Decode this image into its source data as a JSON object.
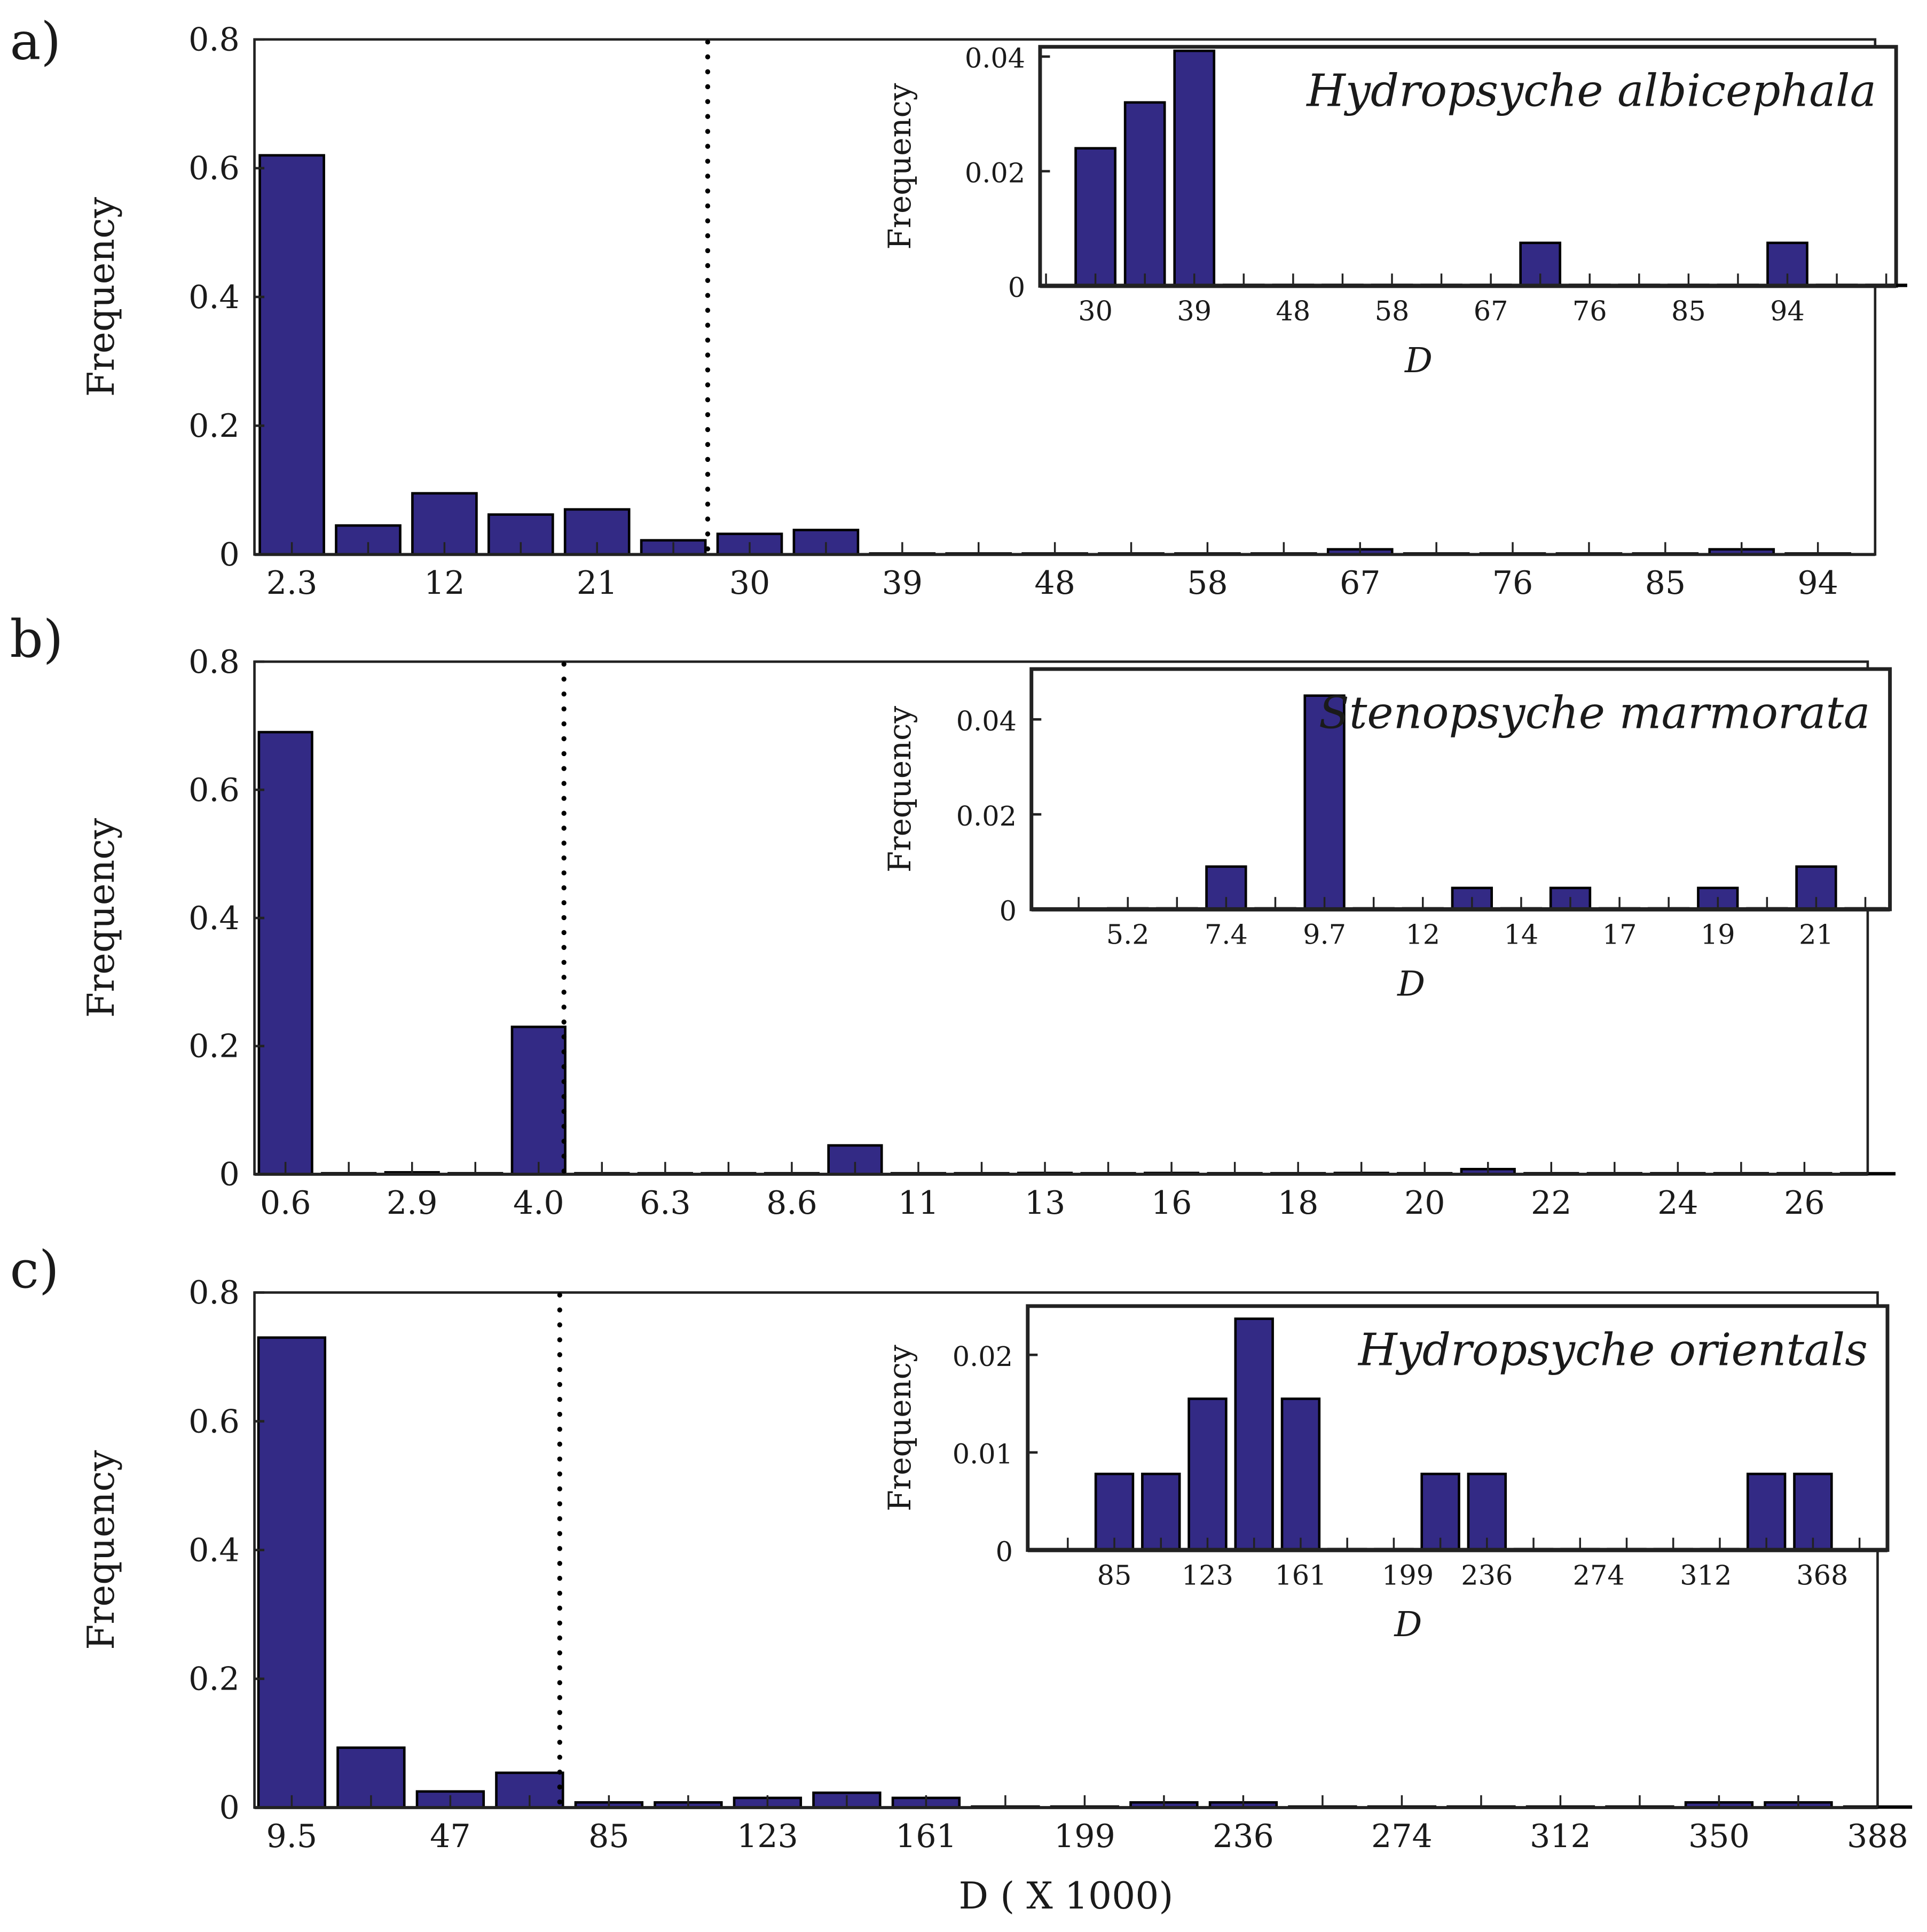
{
  "colors": {
    "bar": "#332a85",
    "edge": "#000000",
    "axis": "#222222"
  },
  "chart_data": [
    {
      "id": "a-main",
      "type": "bar",
      "panel_label": "a)",
      "ylabel": "Frequency",
      "xlabel": "",
      "ylim": [
        0,
        0.8
      ],
      "xlim_bins": [
        -0.49,
        20.75
      ],
      "yticks": [
        {
          "v": 0,
          "label": "0"
        },
        {
          "v": 0.2,
          "label": "0.2"
        },
        {
          "v": 0.4,
          "label": "0.4"
        },
        {
          "v": 0.6,
          "label": "0.6"
        },
        {
          "v": 0.8,
          "label": "0.8"
        }
      ],
      "xticks": [
        {
          "bin": 0,
          "label": "2.3"
        },
        {
          "bin": 2,
          "label": "12"
        },
        {
          "bin": 4,
          "label": "21"
        },
        {
          "bin": 6,
          "label": "30"
        },
        {
          "bin": 8,
          "label": "39"
        },
        {
          "bin": 10,
          "label": "48"
        },
        {
          "bin": 12,
          "label": "58"
        },
        {
          "bin": 14,
          "label": "67"
        },
        {
          "bin": 16,
          "label": "76"
        },
        {
          "bin": 18,
          "label": "85"
        },
        {
          "bin": 20,
          "label": "94"
        }
      ],
      "values": [
        0.62,
        0.045,
        0.095,
        0.062,
        0.07,
        0.022,
        0.032,
        0.038,
        0.001,
        0,
        0.001,
        0,
        0,
        0,
        0.008,
        0.001,
        0,
        0,
        0,
        0.008,
        0
      ],
      "threshold_bin": 5.45
    },
    {
      "id": "a-inset",
      "type": "bar",
      "species": "Hydropsyche albicephala",
      "ylabel": "Frequency",
      "xlabel": "D",
      "ylim": [
        0,
        0.0417
      ],
      "xlim_bins": [
        -1.12,
        16.2
      ],
      "yticks": [
        {
          "v": 0,
          "label": "0"
        },
        {
          "v": 0.02,
          "label": "0.02"
        },
        {
          "v": 0.04,
          "label": "0.04"
        }
      ],
      "xticks": [
        {
          "bin": 0,
          "label": "30"
        },
        {
          "bin": 2,
          "label": "39"
        },
        {
          "bin": 4,
          "label": "48"
        },
        {
          "bin": 6,
          "label": "58"
        },
        {
          "bin": 8,
          "label": "67"
        },
        {
          "bin": 10,
          "label": "76"
        },
        {
          "bin": 12,
          "label": "85"
        },
        {
          "bin": 14,
          "label": "94"
        }
      ],
      "values": [
        0.024,
        0.032,
        0.041,
        0,
        0,
        0,
        0,
        0,
        0,
        0.0075,
        0,
        0,
        0,
        0,
        0.0075,
        0,
        0
      ]
    },
    {
      "id": "b-main",
      "type": "bar",
      "panel_label": "b)",
      "ylabel": "Frequency",
      "xlabel": "",
      "ylim": [
        0,
        0.8
      ],
      "xlim_bins": [
        -0.49,
        25.0
      ],
      "yticks": [
        {
          "v": 0,
          "label": "0"
        },
        {
          "v": 0.2,
          "label": "0.2"
        },
        {
          "v": 0.4,
          "label": "0.4"
        },
        {
          "v": 0.6,
          "label": "0.6"
        },
        {
          "v": 0.8,
          "label": "0.8"
        }
      ],
      "xticks": [
        {
          "bin": 0,
          "label": "0.6"
        },
        {
          "bin": 2,
          "label": "2.9"
        },
        {
          "bin": 4,
          "label": "4.0"
        },
        {
          "bin": 6,
          "label": "6.3"
        },
        {
          "bin": 8,
          "label": "8.6"
        },
        {
          "bin": 10,
          "label": "11"
        },
        {
          "bin": 12,
          "label": "13"
        },
        {
          "bin": 14,
          "label": "16"
        },
        {
          "bin": 16,
          "label": "18"
        },
        {
          "bin": 18,
          "label": "20"
        },
        {
          "bin": 20,
          "label": "22"
        },
        {
          "bin": 22,
          "label": "24"
        },
        {
          "bin": 24,
          "label": "26"
        }
      ],
      "values": [
        0.69,
        0,
        0.003,
        0,
        0.23,
        0,
        0,
        0,
        0,
        0.045,
        0,
        0,
        0.002,
        0,
        0.002,
        0,
        0,
        0.002,
        0,
        0.008,
        0,
        0,
        0,
        0,
        0,
        0
      ],
      "threshold_bin": 4.4
    },
    {
      "id": "b-inset",
      "type": "bar",
      "species": "Stenopsyche marmorata",
      "ylabel": "Frequency",
      "xlabel": "D",
      "ylim": [
        0,
        0.0506
      ],
      "xlim_bins": [
        -1.96,
        15.5
      ],
      "yticks": [
        {
          "v": 0,
          "label": "0"
        },
        {
          "v": 0.02,
          "label": "0.02"
        },
        {
          "v": 0.04,
          "label": "0.04"
        }
      ],
      "xticks": [
        {
          "bin": 0,
          "label": "5.2"
        },
        {
          "bin": 2,
          "label": "7.4"
        },
        {
          "bin": 4,
          "label": "9.7"
        },
        {
          "bin": 6,
          "label": "12"
        },
        {
          "bin": 8,
          "label": "14"
        },
        {
          "bin": 10,
          "label": "17"
        },
        {
          "bin": 12,
          "label": "19"
        },
        {
          "bin": 14,
          "label": "21"
        }
      ],
      "values": [
        0,
        0,
        0.009,
        0,
        0.045,
        0,
        0,
        0.0045,
        0,
        0.0045,
        0,
        0,
        0.0045,
        0,
        0.009,
        0
      ]
    },
    {
      "id": "c-main",
      "type": "bar",
      "panel_label": "c)",
      "ylabel": "Frequency",
      "xlabel": "D ( X 1000)",
      "ylim": [
        0,
        0.8
      ],
      "xlim_bins": [
        -0.47,
        20.0
      ],
      "yticks": [
        {
          "v": 0,
          "label": "0"
        },
        {
          "v": 0.2,
          "label": "0.2"
        },
        {
          "v": 0.4,
          "label": "0.4"
        },
        {
          "v": 0.6,
          "label": "0.6"
        },
        {
          "v": 0.8,
          "label": "0.8"
        }
      ],
      "xticks": [
        {
          "bin": 0,
          "label": "9.5"
        },
        {
          "bin": 2,
          "label": "47"
        },
        {
          "bin": 4,
          "label": "85"
        },
        {
          "bin": 6,
          "label": "123"
        },
        {
          "bin": 8,
          "label": "161"
        },
        {
          "bin": 10,
          "label": "199"
        },
        {
          "bin": 12,
          "label": "236"
        },
        {
          "bin": 14,
          "label": "274"
        },
        {
          "bin": 16,
          "label": "312"
        },
        {
          "bin": 18,
          "label": "350"
        },
        {
          "bin": 20,
          "label": "388"
        }
      ],
      "values": [
        0.73,
        0.093,
        0.025,
        0.054,
        0.008,
        0.008,
        0.015,
        0.023,
        0.015,
        0.001,
        0.001,
        0.008,
        0.008,
        0,
        0,
        0,
        0,
        0,
        0.008,
        0.008,
        0
      ],
      "threshold_bin": 3.38
    },
    {
      "id": "c-inset",
      "type": "bar",
      "species": "Hydropsyche orientals",
      "ylabel": "Frequency",
      "xlabel": "D",
      "ylim": [
        0,
        0.025
      ],
      "xlim_bins": [
        -1.86,
        16.6
      ],
      "yticks": [
        {
          "v": 0,
          "label": "0"
        },
        {
          "v": 0.01,
          "label": "0.01"
        },
        {
          "v": 0.02,
          "label": "0.02"
        }
      ],
      "xticks": [
        {
          "bin": 0,
          "label": "85"
        },
        {
          "bin": 2,
          "label": "123"
        },
        {
          "bin": 4,
          "label": "161"
        },
        {
          "bin": 6.3,
          "label": "199"
        },
        {
          "bin": 8,
          "label": "236"
        },
        {
          "bin": 10.4,
          "label": "274"
        },
        {
          "bin": 12.7,
          "label": "312"
        },
        {
          "bin": 15.2,
          "label": "368"
        }
      ],
      "values": [
        0.0078,
        0.0078,
        0.0155,
        0.0237,
        0.0155,
        0,
        0,
        0.0078,
        0.0078,
        0,
        0,
        0,
        0,
        0,
        0.0078,
        0.0078
      ]
    }
  ]
}
